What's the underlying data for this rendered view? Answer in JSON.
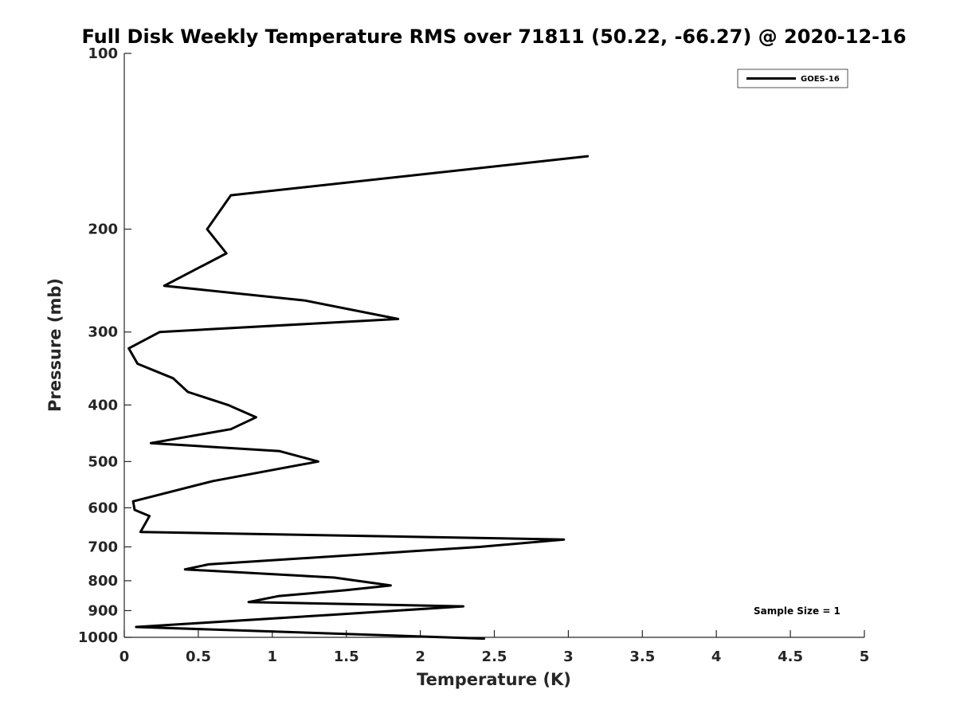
{
  "chart_data": {
    "type": "line",
    "title": "Full Disk Weekly Temperature RMS over 71811 (50.22, -66.27) @ 2020-12-16",
    "xlabel": "Temperature (K)",
    "ylabel": "Pressure (mb)",
    "xlim": [
      0,
      5
    ],
    "ylim": [
      100,
      1000
    ],
    "y_scale": "log",
    "y_reversed": true,
    "grid": false,
    "x_ticks": [
      {
        "value": 0,
        "label": "0"
      },
      {
        "value": 0.5,
        "label": "0.5"
      },
      {
        "value": 1,
        "label": "1"
      },
      {
        "value": 1.5,
        "label": "1.5"
      },
      {
        "value": 2,
        "label": "2"
      },
      {
        "value": 2.5,
        "label": "2.5"
      },
      {
        "value": 3,
        "label": "3"
      },
      {
        "value": 3.5,
        "label": "3.5"
      },
      {
        "value": 4,
        "label": "4"
      },
      {
        "value": 4.5,
        "label": "4.5"
      },
      {
        "value": 5,
        "label": "5"
      }
    ],
    "y_ticks": [
      {
        "value": 100,
        "label": "100"
      },
      {
        "value": 200,
        "label": "200"
      },
      {
        "value": 300,
        "label": "300"
      },
      {
        "value": 400,
        "label": "400"
      },
      {
        "value": 500,
        "label": "500"
      },
      {
        "value": 600,
        "label": "600"
      },
      {
        "value": 700,
        "label": "700"
      },
      {
        "value": 800,
        "label": "800"
      },
      {
        "value": 900,
        "label": "900"
      },
      {
        "value": 1000,
        "label": "1000"
      }
    ],
    "legend_position": "top-right",
    "series": [
      {
        "name": "GOES-16",
        "color": "#000000",
        "points": [
          {
            "x": 3.13,
            "y": 150
          },
          {
            "x": 0.72,
            "y": 175
          },
          {
            "x": 0.56,
            "y": 200
          },
          {
            "x": 0.69,
            "y": 220
          },
          {
            "x": 0.27,
            "y": 250
          },
          {
            "x": 1.22,
            "y": 265
          },
          {
            "x": 1.85,
            "y": 285
          },
          {
            "x": 0.24,
            "y": 300
          },
          {
            "x": 0.03,
            "y": 320
          },
          {
            "x": 0.09,
            "y": 340
          },
          {
            "x": 0.33,
            "y": 360
          },
          {
            "x": 0.43,
            "y": 380
          },
          {
            "x": 0.7,
            "y": 400
          },
          {
            "x": 0.89,
            "y": 420
          },
          {
            "x": 0.72,
            "y": 440
          },
          {
            "x": 0.18,
            "y": 465
          },
          {
            "x": 1.05,
            "y": 480
          },
          {
            "x": 1.31,
            "y": 500
          },
          {
            "x": 0.6,
            "y": 540
          },
          {
            "x": 0.06,
            "y": 585
          },
          {
            "x": 0.07,
            "y": 605
          },
          {
            "x": 0.17,
            "y": 620
          },
          {
            "x": 0.11,
            "y": 660
          },
          {
            "x": 2.97,
            "y": 680
          },
          {
            "x": 2.4,
            "y": 700
          },
          {
            "x": 0.57,
            "y": 750
          },
          {
            "x": 0.41,
            "y": 765
          },
          {
            "x": 1.42,
            "y": 790
          },
          {
            "x": 1.8,
            "y": 815
          },
          {
            "x": 1.5,
            "y": 830
          },
          {
            "x": 1.04,
            "y": 850
          },
          {
            "x": 0.84,
            "y": 870
          },
          {
            "x": 2.29,
            "y": 885
          },
          {
            "x": 1.4,
            "y": 915
          },
          {
            "x": 0.08,
            "y": 960
          },
          {
            "x": 2.43,
            "y": 1005
          }
        ]
      }
    ],
    "annotations": [
      {
        "text": "Sample Size = 1"
      }
    ]
  }
}
